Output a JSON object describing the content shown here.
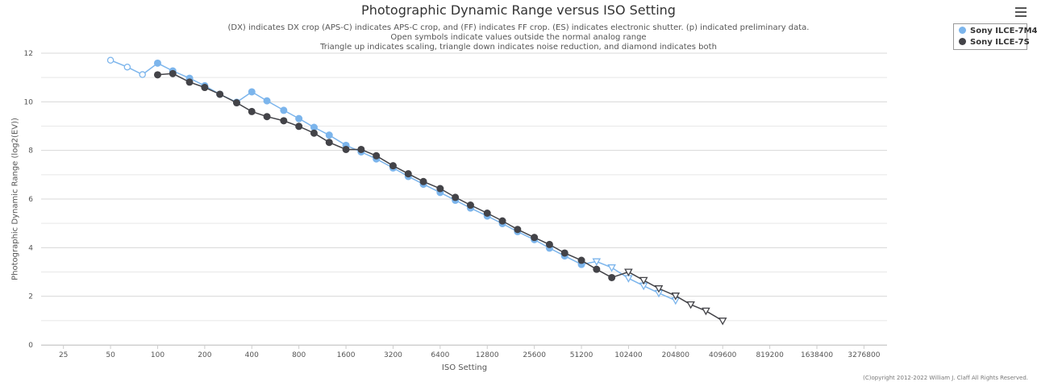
{
  "title": "Photographic Dynamic Range versus ISO Setting",
  "subtitle_lines": [
    "(DX) indicates DX crop (APS-C) indicates APS-C crop, and (FF) indicates FF crop. (ES) indicates electronic shutter. (p) indicated preliminary data.",
    "Open symbols indicate values outside the normal analog range",
    "Triangle up indicates scaling, triangle down indicates noise reduction, and diamond indicates both"
  ],
  "credit": "(C)opyright 2012-2022 William J. Claff All Rights Reserved.",
  "menu_icon": "hamburger-menu-icon",
  "chart_data": {
    "type": "line",
    "title": "Photographic Dynamic Range versus ISO Setting",
    "xlabel": "ISO Setting",
    "ylabel": "Photographic Dynamic Range (log2(EV))",
    "x_scale": "log2",
    "x_ticks": [
      "25",
      "50",
      "100",
      "200",
      "400",
      "800",
      "1600",
      "3200",
      "6400",
      "12800",
      "25600",
      "51200",
      "102400",
      "204800",
      "409600",
      "819200",
      "1638400",
      "3276800"
    ],
    "xlim": [
      18,
      4600000
    ],
    "ylim": [
      0,
      12
    ],
    "y_ticks": [
      "0",
      "2",
      "4",
      "6",
      "8",
      "10",
      "12"
    ],
    "grid": true,
    "legend_position": "top-right",
    "series": [
      {
        "name": "Sony ILCE-7M4",
        "color": "#7cb5ec",
        "points": [
          {
            "x": 50,
            "y": 11.71,
            "marker": "open-circle"
          },
          {
            "x": 64,
            "y": 11.43,
            "marker": "open-circle"
          },
          {
            "x": 80,
            "y": 11.12,
            "marker": "open-circle"
          },
          {
            "x": 100,
            "y": 11.59,
            "marker": "circle"
          },
          {
            "x": 125,
            "y": 11.27,
            "marker": "circle"
          },
          {
            "x": 160,
            "y": 10.97,
            "marker": "circle"
          },
          {
            "x": 200,
            "y": 10.66,
            "marker": "circle"
          },
          {
            "x": 250,
            "y": 10.31,
            "marker": "circle"
          },
          {
            "x": 320,
            "y": 9.98,
            "marker": "circle"
          },
          {
            "x": 400,
            "y": 10.41,
            "marker": "circle"
          },
          {
            "x": 500,
            "y": 10.04,
            "marker": "circle"
          },
          {
            "x": 640,
            "y": 9.65,
            "marker": "circle"
          },
          {
            "x": 800,
            "y": 9.31,
            "marker": "circle"
          },
          {
            "x": 1000,
            "y": 8.95,
            "marker": "circle"
          },
          {
            "x": 1250,
            "y": 8.63,
            "marker": "circle"
          },
          {
            "x": 1600,
            "y": 8.21,
            "marker": "circle"
          },
          {
            "x": 2000,
            "y": 7.94,
            "marker": "circle"
          },
          {
            "x": 2500,
            "y": 7.65,
            "marker": "circle"
          },
          {
            "x": 3200,
            "y": 7.28,
            "marker": "circle"
          },
          {
            "x": 4000,
            "y": 6.93,
            "marker": "circle"
          },
          {
            "x": 5000,
            "y": 6.61,
            "marker": "circle"
          },
          {
            "x": 6400,
            "y": 6.27,
            "marker": "circle"
          },
          {
            "x": 8000,
            "y": 5.95,
            "marker": "circle"
          },
          {
            "x": 10000,
            "y": 5.63,
            "marker": "circle"
          },
          {
            "x": 12800,
            "y": 5.3,
            "marker": "circle"
          },
          {
            "x": 16000,
            "y": 4.99,
            "marker": "circle"
          },
          {
            "x": 20000,
            "y": 4.66,
            "marker": "circle"
          },
          {
            "x": 25600,
            "y": 4.33,
            "marker": "circle"
          },
          {
            "x": 32000,
            "y": 3.98,
            "marker": "circle"
          },
          {
            "x": 40000,
            "y": 3.66,
            "marker": "circle"
          },
          {
            "x": 51200,
            "y": 3.31,
            "marker": "circle"
          },
          {
            "x": 64000,
            "y": 3.43,
            "marker": "open-triangle-down"
          },
          {
            "x": 80000,
            "y": 3.18,
            "marker": "open-triangle-down"
          },
          {
            "x": 102400,
            "y": 2.74,
            "marker": "open-triangle-down"
          },
          {
            "x": 128000,
            "y": 2.43,
            "marker": "open-triangle-down"
          },
          {
            "x": 160000,
            "y": 2.13,
            "marker": "open-triangle-down"
          },
          {
            "x": 204800,
            "y": 1.83,
            "marker": "open-triangle-down"
          }
        ]
      },
      {
        "name": "Sony ILCE-7S",
        "color": "#434348",
        "points": [
          {
            "x": 100,
            "y": 11.11,
            "marker": "circle"
          },
          {
            "x": 125,
            "y": 11.16,
            "marker": "circle"
          },
          {
            "x": 160,
            "y": 10.81,
            "marker": "circle"
          },
          {
            "x": 200,
            "y": 10.59,
            "marker": "circle"
          },
          {
            "x": 250,
            "y": 10.31,
            "marker": "circle"
          },
          {
            "x": 320,
            "y": 9.96,
            "marker": "circle"
          },
          {
            "x": 400,
            "y": 9.6,
            "marker": "circle"
          },
          {
            "x": 500,
            "y": 9.39,
            "marker": "circle"
          },
          {
            "x": 640,
            "y": 9.22,
            "marker": "circle"
          },
          {
            "x": 800,
            "y": 8.99,
            "marker": "circle"
          },
          {
            "x": 1000,
            "y": 8.71,
            "marker": "circle"
          },
          {
            "x": 1250,
            "y": 8.33,
            "marker": "circle"
          },
          {
            "x": 1600,
            "y": 8.04,
            "marker": "circle"
          },
          {
            "x": 2000,
            "y": 8.04,
            "marker": "circle"
          },
          {
            "x": 2500,
            "y": 7.78,
            "marker": "circle"
          },
          {
            "x": 3200,
            "y": 7.37,
            "marker": "circle"
          },
          {
            "x": 4000,
            "y": 7.04,
            "marker": "circle"
          },
          {
            "x": 5000,
            "y": 6.72,
            "marker": "circle"
          },
          {
            "x": 6400,
            "y": 6.43,
            "marker": "circle"
          },
          {
            "x": 8000,
            "y": 6.07,
            "marker": "circle"
          },
          {
            "x": 10000,
            "y": 5.75,
            "marker": "circle"
          },
          {
            "x": 12800,
            "y": 5.42,
            "marker": "circle"
          },
          {
            "x": 16000,
            "y": 5.1,
            "marker": "circle"
          },
          {
            "x": 20000,
            "y": 4.75,
            "marker": "circle"
          },
          {
            "x": 25600,
            "y": 4.42,
            "marker": "circle"
          },
          {
            "x": 32000,
            "y": 4.13,
            "marker": "circle"
          },
          {
            "x": 40000,
            "y": 3.78,
            "marker": "circle"
          },
          {
            "x": 51200,
            "y": 3.48,
            "marker": "circle"
          },
          {
            "x": 64000,
            "y": 3.11,
            "marker": "circle"
          },
          {
            "x": 80000,
            "y": 2.77,
            "marker": "circle"
          },
          {
            "x": 102400,
            "y": 3.0,
            "marker": "open-triangle-down"
          },
          {
            "x": 128000,
            "y": 2.66,
            "marker": "open-triangle-down"
          },
          {
            "x": 160000,
            "y": 2.32,
            "marker": "open-triangle-down"
          },
          {
            "x": 204800,
            "y": 2.02,
            "marker": "open-triangle-down"
          },
          {
            "x": 256000,
            "y": 1.66,
            "marker": "open-triangle-down"
          },
          {
            "x": 320000,
            "y": 1.4,
            "marker": "open-triangle-down"
          },
          {
            "x": 409600,
            "y": 0.99,
            "marker": "open-triangle-down"
          }
        ]
      }
    ]
  }
}
